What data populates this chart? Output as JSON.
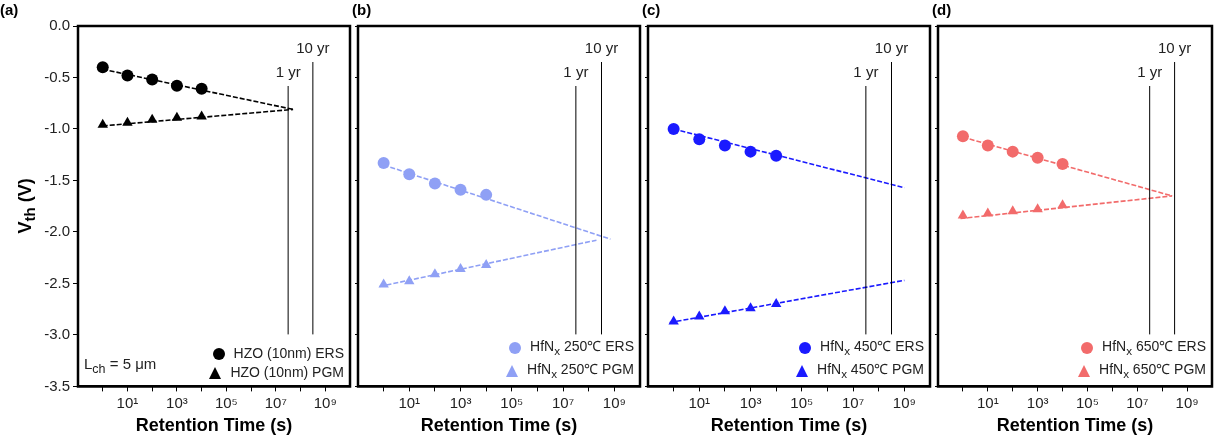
{
  "chart_data": [
    {
      "type": "scatter",
      "title": "(a)",
      "xlabel": "Retention Time (s)",
      "ylabel": "V$_{th}$ (V)",
      "log": "x",
      "xlim": [
        0.1,
        10000000000
      ],
      "ylim": [
        -3.5,
        0
      ],
      "legend": "bottom right",
      "annotations": [
        "L$_{ch}$ = 5 μm"
      ],
      "xticks": [
        {
          "value": 1,
          "label": null
        },
        {
          "value": 10,
          "label": "10¹"
        },
        {
          "value": 100,
          "label": null
        },
        {
          "value": 1000,
          "label": "10³"
        },
        {
          "value": 10000,
          "label": null
        },
        {
          "value": 100000,
          "label": "10⁵"
        },
        {
          "value": 1000000,
          "label": null
        },
        {
          "value": 10000000,
          "label": "10⁷"
        },
        {
          "value": 100000000,
          "label": null
        },
        {
          "value": 1000000000,
          "label": "10⁹"
        }
      ],
      "yticks": [
        {
          "value": 0,
          "label": "0.0"
        },
        -0.5,
        {
          "value": -1,
          "label": "-1.0"
        },
        -1.5,
        {
          "value": -2,
          "label": "-2.0"
        },
        -2.5,
        {
          "value": -3,
          "label": "-3.0"
        },
        -3.5
      ],
      "ref_lines": [
        {
          "axis": "x",
          "value": 31500000,
          "label": "1 yr",
          "color": "#000000"
        },
        {
          "axis": "x",
          "value": 315000000,
          "label": "10 yr",
          "color": "#000000"
        }
      ],
      "series": [
        {
          "name": "HZO (10nm) ERS",
          "color": "#000000",
          "marker": "circle",
          "x": [
            1,
            10,
            100,
            1000,
            10000
          ],
          "values": [
            -0.4,
            -0.48,
            -0.52,
            -0.58,
            -0.61
          ]
        },
        {
          "name": "HZO (10nm) PGM",
          "color": "#000000",
          "marker": "triangle",
          "x": [
            1,
            10,
            100,
            1000,
            10000
          ],
          "values": [
            -0.96,
            -0.94,
            -0.91,
            -0.89,
            -0.88
          ]
        },
        {
          "type": "line",
          "color": "#000000",
          "marker": "none",
          "line_style": "dashed",
          "x": [
            1,
            50000000
          ],
          "values": [
            -0.42,
            -0.81
          ]
        },
        {
          "type": "line",
          "color": "#000000",
          "marker": "none",
          "line_style": "dashed",
          "x": [
            1,
            50000000
          ],
          "values": [
            -0.97,
            -0.81
          ]
        }
      ]
    },
    {
      "type": "scatter",
      "title": "(b)",
      "xlabel": "Retention Time (s)",
      "log": "x",
      "xlim": [
        0.1,
        10000000000
      ],
      "ylim": [
        -3.5,
        0
      ],
      "legend": "bottom right",
      "tick_labels": "x",
      "xticks": [
        {
          "value": 1,
          "label": null
        },
        {
          "value": 10,
          "label": "10¹"
        },
        {
          "value": 100,
          "label": null
        },
        {
          "value": 1000,
          "label": "10³"
        },
        {
          "value": 10000,
          "label": null
        },
        {
          "value": 100000,
          "label": "10⁵"
        },
        {
          "value": 1000000,
          "label": null
        },
        {
          "value": 10000000,
          "label": "10⁷"
        },
        {
          "value": 100000000,
          "label": null
        },
        {
          "value": 1000000000,
          "label": "10⁹"
        }
      ],
      "yticks": [
        {
          "value": 0,
          "label": null
        },
        {
          "value": -0.5,
          "label": null
        },
        {
          "value": -1,
          "label": null
        },
        {
          "value": -1.5,
          "label": null
        },
        {
          "value": -2,
          "label": null
        },
        {
          "value": -2.5,
          "label": null
        },
        {
          "value": -3,
          "label": null
        },
        {
          "value": -3.5,
          "label": null
        }
      ],
      "ref_lines": [
        {
          "axis": "x",
          "value": 31500000,
          "label": "1 yr",
          "color": "#000000"
        },
        {
          "axis": "x",
          "value": 315000000,
          "label": "10 yr",
          "color": "#000000"
        }
      ],
      "series": [
        {
          "name": "HfN$_{x}$ 250℃ ERS",
          "color": "#8fa0f5",
          "marker": "circle",
          "x": [
            1,
            10,
            100,
            1000,
            10000
          ],
          "values": [
            -1.33,
            -1.44,
            -1.53,
            -1.59,
            -1.64
          ]
        },
        {
          "name": "HfN$_{x}$ 250℃ PGM",
          "color": "#8fa0f5",
          "marker": "triangle",
          "x": [
            1,
            10,
            100,
            1000,
            10000
          ],
          "values": [
            -2.51,
            -2.48,
            -2.41,
            -2.36,
            -2.32
          ]
        },
        {
          "type": "line",
          "color": "#8fa0f5",
          "marker": "none",
          "line_style": "dashed",
          "x": [
            1,
            700000000
          ],
          "values": [
            -1.35,
            -2.07
          ]
        },
        {
          "type": "line",
          "color": "#8fa0f5",
          "marker": "none",
          "line_style": "dashed",
          "x": [
            0.7,
            200000000
          ],
          "values": [
            -2.53,
            -2.08
          ]
        }
      ]
    },
    {
      "type": "scatter",
      "title": "(c)",
      "xlabel": "Retention Time (s)",
      "log": "x",
      "xlim": [
        0.1,
        10000000000
      ],
      "ylim": [
        -3.5,
        0
      ],
      "legend": "bottom right",
      "tick_labels": "x",
      "xticks": [
        {
          "value": 1,
          "label": null
        },
        {
          "value": 10,
          "label": "10¹"
        },
        {
          "value": 100,
          "label": null
        },
        {
          "value": 1000,
          "label": "10³"
        },
        {
          "value": 10000,
          "label": null
        },
        {
          "value": 100000,
          "label": "10⁵"
        },
        {
          "value": 1000000,
          "label": null
        },
        {
          "value": 10000000,
          "label": "10⁷"
        },
        {
          "value": 100000000,
          "label": null
        },
        {
          "value": 1000000000,
          "label": "10⁹"
        }
      ],
      "yticks": [
        {
          "value": 0,
          "label": null
        },
        {
          "value": -0.5,
          "label": null
        },
        {
          "value": -1,
          "label": null
        },
        {
          "value": -1.5,
          "label": null
        },
        {
          "value": -2,
          "label": null
        },
        {
          "value": -2.5,
          "label": null
        },
        {
          "value": -3,
          "label": null
        },
        {
          "value": -3.5,
          "label": null
        }
      ],
      "ref_lines": [
        {
          "axis": "x",
          "value": 31500000,
          "label": "1 yr",
          "color": "#000000"
        },
        {
          "axis": "x",
          "value": 315000000,
          "label": "10 yr",
          "color": "#000000"
        }
      ],
      "series": [
        {
          "name": "HfN$_{x}$ 450℃ ERS",
          "color": "#1a1aff",
          "marker": "circle",
          "x": [
            1,
            10,
            100,
            1000,
            10000
          ],
          "values": [
            -1.0,
            -1.1,
            -1.16,
            -1.22,
            -1.26
          ]
        },
        {
          "name": "HfN$_{x}$ 450℃ PGM",
          "color": "#1a1aff",
          "marker": "triangle",
          "x": [
            1,
            10,
            100,
            1000,
            10000
          ],
          "values": [
            -2.87,
            -2.82,
            -2.77,
            -2.74,
            -2.7
          ]
        },
        {
          "type": "line",
          "color": "#1a1aff",
          "marker": "none",
          "line_style": "dashed",
          "x": [
            1,
            1000000000
          ],
          "values": [
            -1.0,
            -1.57
          ]
        },
        {
          "type": "line",
          "color": "#1a1aff",
          "marker": "none",
          "line_style": "dashed",
          "x": [
            0.7,
            1000000000
          ],
          "values": [
            -2.88,
            -2.47
          ]
        }
      ]
    },
    {
      "type": "scatter",
      "title": "(d)",
      "xlabel": "Retention Time (s)",
      "log": "x",
      "xlim": [
        0.1,
        10000000000
      ],
      "ylim": [
        -3.5,
        0
      ],
      "legend": "bottom right",
      "tick_labels": "x",
      "xticks": [
        {
          "value": 1,
          "label": null
        },
        {
          "value": 10,
          "label": "10¹"
        },
        {
          "value": 100,
          "label": null
        },
        {
          "value": 1000,
          "label": "10³"
        },
        {
          "value": 10000,
          "label": null
        },
        {
          "value": 100000,
          "label": "10⁵"
        },
        {
          "value": 1000000,
          "label": null
        },
        {
          "value": 10000000,
          "label": "10⁷"
        },
        {
          "value": 100000000,
          "label": null
        },
        {
          "value": 1000000000,
          "label": "10⁹"
        }
      ],
      "yticks": [
        {
          "value": 0,
          "label": null
        },
        {
          "value": -0.5,
          "label": null
        },
        {
          "value": -1,
          "label": null
        },
        {
          "value": -1.5,
          "label": null
        },
        {
          "value": -2,
          "label": null
        },
        {
          "value": -2.5,
          "label": null
        },
        {
          "value": -3,
          "label": null
        },
        {
          "value": -3.5,
          "label": null
        }
      ],
      "ref_lines": [
        {
          "axis": "x",
          "value": 31500000,
          "label": "1 yr",
          "color": "#000000"
        },
        {
          "axis": "x",
          "value": 315000000,
          "label": "10 yr",
          "color": "#000000"
        }
      ],
      "series": [
        {
          "name": "HfN$_{x}$ 650℃ ERS",
          "color": "#f26b6b",
          "marker": "circle",
          "x": [
            1,
            10,
            100,
            1000,
            10000
          ],
          "values": [
            -1.07,
            -1.16,
            -1.22,
            -1.28,
            -1.34
          ]
        },
        {
          "name": "HfN$_{x}$ 650℃ PGM",
          "color": "#f26b6b",
          "marker": "triangle",
          "x": [
            1,
            10,
            100,
            1000,
            10000
          ],
          "values": [
            -1.84,
            -1.82,
            -1.8,
            -1.78,
            -1.74
          ]
        },
        {
          "type": "line",
          "color": "#f26b6b",
          "marker": "none",
          "line_style": "dashed",
          "x": [
            1,
            250000000
          ],
          "values": [
            -1.08,
            -1.65
          ]
        },
        {
          "type": "line",
          "color": "#f26b6b",
          "marker": "none",
          "line_style": "dashed",
          "x": [
            0.8,
            250000000
          ],
          "values": [
            -1.87,
            -1.65
          ]
        }
      ]
    }
  ]
}
